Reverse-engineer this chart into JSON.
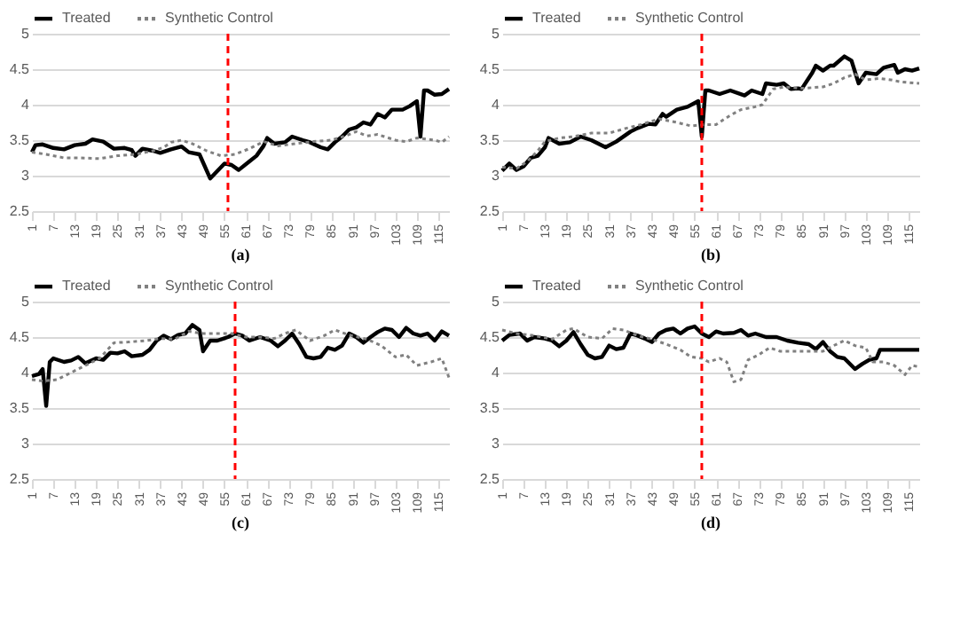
{
  "chart_data": [
    {
      "type": "line",
      "title": "(a)",
      "legend": "top",
      "grid": "y",
      "xlim": [
        1,
        118
      ],
      "xticks": [
        1,
        7,
        13,
        19,
        25,
        31,
        37,
        43,
        49,
        55,
        61,
        67,
        73,
        79,
        85,
        91,
        97,
        103,
        109,
        115
      ],
      "ylim": [
        2.5,
        5
      ],
      "yticks": [
        2.5,
        3,
        3.5,
        4,
        4.5,
        5
      ],
      "ref_lines": [
        {
          "axis": "x",
          "value": 56,
          "color": "#ff0000",
          "line_style": "dashed"
        }
      ],
      "series": [
        {
          "name": "Treated",
          "color": "#000000",
          "line_style": "solid",
          "x": [
            1,
            2,
            4,
            7,
            10,
            13,
            16,
            18,
            21,
            24,
            27,
            29,
            30,
            32,
            35,
            37,
            40,
            43,
            45,
            48,
            51,
            55,
            57,
            59,
            62,
            64,
            66,
            67,
            69,
            72,
            74,
            77,
            79,
            82,
            84,
            86,
            88,
            90,
            92,
            94,
            96,
            98,
            100,
            102,
            105,
            107,
            109,
            110,
            111,
            112,
            114,
            116,
            118
          ],
          "values": [
            3.33,
            3.43,
            3.44,
            3.39,
            3.37,
            3.43,
            3.45,
            3.51,
            3.48,
            3.38,
            3.39,
            3.36,
            3.28,
            3.38,
            3.35,
            3.32,
            3.37,
            3.41,
            3.33,
            3.3,
            2.96,
            3.17,
            3.15,
            3.08,
            3.2,
            3.28,
            3.42,
            3.53,
            3.45,
            3.47,
            3.55,
            3.5,
            3.47,
            3.4,
            3.37,
            3.47,
            3.55,
            3.65,
            3.68,
            3.75,
            3.72,
            3.87,
            3.82,
            3.93,
            3.93,
            3.98,
            4.05,
            3.55,
            4.2,
            4.2,
            4.14,
            4.15,
            4.22
          ]
        },
        {
          "name": "Synthetic Control",
          "color": "#808080",
          "line_style": "dotted",
          "x": [
            1,
            5,
            10,
            14,
            20,
            25,
            30,
            35,
            38,
            40,
            43,
            46,
            50,
            54,
            58,
            62,
            66,
            70,
            75,
            80,
            85,
            89,
            92,
            95,
            98,
            103,
            106,
            109,
            114,
            116,
            118
          ],
          "values": [
            3.33,
            3.3,
            3.25,
            3.25,
            3.24,
            3.28,
            3.3,
            3.35,
            3.4,
            3.47,
            3.5,
            3.45,
            3.35,
            3.28,
            3.3,
            3.38,
            3.48,
            3.42,
            3.45,
            3.48,
            3.5,
            3.56,
            3.62,
            3.56,
            3.58,
            3.5,
            3.48,
            3.53,
            3.5,
            3.47,
            3.55
          ]
        }
      ]
    },
    {
      "type": "line",
      "title": "(b)",
      "legend": "top",
      "grid": "y",
      "xlim": [
        1,
        118
      ],
      "xticks": [
        1,
        7,
        13,
        19,
        25,
        31,
        37,
        43,
        49,
        55,
        61,
        67,
        73,
        79,
        85,
        91,
        97,
        103,
        109,
        115
      ],
      "ylim": [
        2.5,
        5
      ],
      "yticks": [
        2.5,
        3,
        3.5,
        4,
        4.5,
        5
      ],
      "ref_lines": [
        {
          "axis": "x",
          "value": 57,
          "color": "#ff0000",
          "line_style": "dashed"
        }
      ],
      "series": [
        {
          "name": "Treated",
          "color": "#000000",
          "line_style": "solid",
          "x": [
            1,
            3,
            5,
            7,
            9,
            11,
            13,
            14,
            17,
            20,
            23,
            26,
            30,
            33,
            37,
            39,
            42,
            44,
            46,
            47,
            50,
            53,
            56,
            57,
            58,
            59,
            62,
            65,
            69,
            71,
            74,
            75,
            78,
            80,
            82,
            84,
            85,
            88,
            89,
            91,
            93,
            94,
            97,
            99,
            101,
            103,
            106,
            108,
            111,
            112,
            114,
            116,
            118
          ],
          "values": [
            3.07,
            3.17,
            3.08,
            3.13,
            3.25,
            3.28,
            3.4,
            3.53,
            3.45,
            3.47,
            3.55,
            3.5,
            3.4,
            3.48,
            3.62,
            3.67,
            3.73,
            3.72,
            3.87,
            3.83,
            3.93,
            3.97,
            4.05,
            3.55,
            4.2,
            4.2,
            4.15,
            4.2,
            4.13,
            4.2,
            4.15,
            4.3,
            4.28,
            4.3,
            4.22,
            4.23,
            4.22,
            4.45,
            4.55,
            4.48,
            4.55,
            4.55,
            4.68,
            4.62,
            4.3,
            4.45,
            4.43,
            4.52,
            4.56,
            4.45,
            4.5,
            4.48,
            4.51
          ]
        },
        {
          "name": "Synthetic Control",
          "color": "#808080",
          "line_style": "dotted",
          "x": [
            1,
            5,
            8,
            11,
            13,
            17,
            21,
            26,
            31,
            36,
            40,
            45,
            50,
            54,
            58,
            61,
            65,
            68,
            72,
            74,
            77,
            80,
            85,
            91,
            94,
            97,
            100,
            103,
            107,
            110,
            113,
            118
          ],
          "values": [
            3.12,
            3.1,
            3.2,
            3.35,
            3.48,
            3.53,
            3.55,
            3.6,
            3.6,
            3.67,
            3.72,
            3.8,
            3.75,
            3.7,
            3.72,
            3.72,
            3.85,
            3.93,
            3.97,
            4.0,
            4.22,
            4.25,
            4.23,
            4.25,
            4.3,
            4.38,
            4.43,
            4.35,
            4.37,
            4.35,
            4.32,
            4.3
          ]
        }
      ]
    },
    {
      "type": "line",
      "title": "(c)",
      "legend": "top",
      "grid": "y",
      "xlim": [
        1,
        118
      ],
      "xticks": [
        1,
        7,
        13,
        19,
        25,
        31,
        37,
        43,
        49,
        55,
        61,
        67,
        73,
        79,
        85,
        91,
        97,
        103,
        109,
        115
      ],
      "ylim": [
        2.5,
        5
      ],
      "yticks": [
        2.5,
        3,
        3.5,
        4,
        4.5,
        5
      ],
      "ref_lines": [
        {
          "axis": "x",
          "value": 58,
          "color": "#ff0000",
          "line_style": "dashed"
        }
      ],
      "series": [
        {
          "name": "Treated",
          "color": "#000000",
          "line_style": "solid",
          "x": [
            1,
            3,
            4,
            5,
            6,
            7,
            10,
            12,
            14,
            16,
            19,
            21,
            23,
            25,
            27,
            29,
            32,
            34,
            36,
            38,
            40,
            42,
            44,
            46,
            48,
            49,
            51,
            53,
            56,
            58,
            60,
            62,
            65,
            68,
            70,
            72,
            74,
            76,
            78,
            80,
            82,
            84,
            86,
            88,
            90,
            92,
            94,
            96,
            98,
            100,
            102,
            104,
            106,
            108,
            110,
            112,
            114,
            116,
            118
          ],
          "values": [
            3.95,
            3.98,
            4.05,
            3.53,
            4.15,
            4.2,
            4.15,
            4.17,
            4.22,
            4.13,
            4.2,
            4.18,
            4.28,
            4.27,
            4.3,
            4.23,
            4.25,
            4.32,
            4.45,
            4.52,
            4.47,
            4.53,
            4.55,
            4.67,
            4.6,
            4.3,
            4.45,
            4.45,
            4.5,
            4.55,
            4.52,
            4.45,
            4.5,
            4.45,
            4.37,
            4.45,
            4.55,
            4.4,
            4.22,
            4.2,
            4.22,
            4.35,
            4.32,
            4.38,
            4.55,
            4.5,
            4.42,
            4.5,
            4.57,
            4.62,
            4.6,
            4.5,
            4.63,
            4.55,
            4.52,
            4.55,
            4.45,
            4.58,
            4.52
          ]
        },
        {
          "name": "Synthetic Control",
          "color": "#808080",
          "line_style": "dotted",
          "x": [
            1,
            4,
            8,
            12,
            16,
            20,
            24,
            28,
            33,
            37,
            41,
            45,
            49,
            53,
            57,
            61,
            65,
            69,
            72,
            75,
            79,
            83,
            86,
            90,
            95,
            99,
            103,
            106,
            109,
            113,
            116,
            118
          ],
          "values": [
            3.9,
            3.88,
            3.9,
            4.0,
            4.1,
            4.2,
            4.42,
            4.43,
            4.45,
            4.48,
            4.47,
            4.58,
            4.55,
            4.55,
            4.55,
            4.5,
            4.5,
            4.48,
            4.55,
            4.6,
            4.45,
            4.52,
            4.6,
            4.53,
            4.47,
            4.38,
            4.22,
            4.25,
            4.1,
            4.15,
            4.2,
            3.93
          ]
        }
      ]
    },
    {
      "type": "line",
      "title": "(d)",
      "legend": "top",
      "grid": "y",
      "xlim": [
        1,
        118
      ],
      "xticks": [
        1,
        7,
        13,
        19,
        25,
        31,
        37,
        43,
        49,
        55,
        61,
        67,
        73,
        79,
        85,
        91,
        97,
        103,
        109,
        115
      ],
      "ylim": [
        2.5,
        5
      ],
      "yticks": [
        2.5,
        3,
        3.5,
        4,
        4.5,
        5
      ],
      "ref_lines": [
        {
          "axis": "x",
          "value": 57,
          "color": "#ff0000",
          "line_style": "dashed"
        }
      ],
      "series": [
        {
          "name": "Treated",
          "color": "#000000",
          "line_style": "solid",
          "x": [
            1,
            3,
            6,
            8,
            10,
            13,
            15,
            17,
            19,
            21,
            23,
            25,
            27,
            29,
            31,
            33,
            35,
            37,
            39,
            41,
            43,
            45,
            47,
            49,
            51,
            53,
            55,
            57,
            59,
            61,
            63,
            66,
            68,
            70,
            72,
            75,
            78,
            81,
            84,
            87,
            89,
            91,
            93,
            95,
            97,
            100,
            102,
            104,
            106,
            107,
            118
          ],
          "values": [
            4.45,
            4.53,
            4.55,
            4.45,
            4.5,
            4.48,
            4.45,
            4.37,
            4.45,
            4.57,
            4.4,
            4.25,
            4.2,
            4.22,
            4.38,
            4.33,
            4.35,
            4.55,
            4.52,
            4.48,
            4.43,
            4.55,
            4.6,
            4.62,
            4.55,
            4.62,
            4.65,
            4.55,
            4.5,
            4.58,
            4.55,
            4.56,
            4.6,
            4.52,
            4.55,
            4.5,
            4.5,
            4.45,
            4.42,
            4.4,
            4.33,
            4.43,
            4.3,
            4.22,
            4.2,
            4.05,
            4.12,
            4.18,
            4.2,
            4.32,
            4.32
          ]
        },
        {
          "name": "Synthetic Control",
          "color": "#808080",
          "line_style": "dotted",
          "x": [
            1,
            5,
            10,
            15,
            19,
            21,
            25,
            29,
            32,
            35,
            39,
            43,
            47,
            51,
            54,
            57,
            59,
            62,
            64,
            66,
            68,
            70,
            73,
            76,
            79,
            85,
            91,
            94,
            97,
            100,
            103,
            105,
            108,
            111,
            114,
            116,
            118
          ],
          "values": [
            4.6,
            4.55,
            4.52,
            4.47,
            4.6,
            4.62,
            4.5,
            4.48,
            4.62,
            4.6,
            4.52,
            4.47,
            4.4,
            4.32,
            4.22,
            4.2,
            4.15,
            4.2,
            4.15,
            3.87,
            3.9,
            4.18,
            4.25,
            4.35,
            4.3,
            4.3,
            4.3,
            4.38,
            4.45,
            4.38,
            4.35,
            4.15,
            4.15,
            4.1,
            3.97,
            4.1,
            4.08
          ]
        }
      ]
    }
  ]
}
